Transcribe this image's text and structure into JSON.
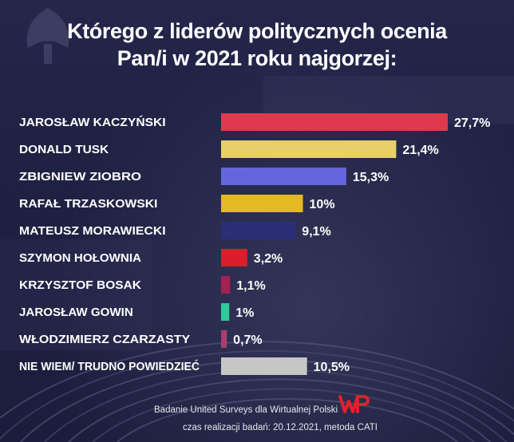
{
  "title": {
    "line1": "Którego z liderów politycznych ocenia",
    "line2": "Pan/i w 2021 roku najgorzej:"
  },
  "chart_data": {
    "type": "bar",
    "orientation": "horizontal",
    "categories": [
      "JAROSŁAW KACZYŃSKI",
      "DONALD TUSK",
      "ZBIGNIEW ZIOBRO",
      "RAFAŁ TRZASKOWSKI",
      "MATEUSZ MORAWIECKI",
      "SZYMON HOŁOWNIA",
      "KRZYSZTOF BOSAK",
      "JAROSŁAW GOWIN",
      "WŁODZIMIERZ CZARZASTY",
      "NIE WIEM/ TRUDNO POWIEDZIEĆ"
    ],
    "values": [
      27.7,
      21.4,
      15.3,
      10,
      9.1,
      3.2,
      1.1,
      1,
      0.7,
      10.5
    ],
    "value_labels": [
      "27,7%",
      "21,4%",
      "15,3%",
      "10%",
      "9,1%",
      "3,2%",
      "1,1%",
      "1%",
      "0,7%",
      "10,5%"
    ],
    "colors": [
      "#dd3a4d",
      "#e8cf6a",
      "#6366dc",
      "#e5b923",
      "#2c2e78",
      "#d81f2b",
      "#a22252",
      "#33c99a",
      "#a6406e",
      "#c6c6c6"
    ],
    "xlim": [
      0,
      27.7
    ],
    "grid": false,
    "legend": "none"
  },
  "footer": {
    "source": "Badanie United Surveys dla Wirtualnej Polski",
    "method": "czas realizacji badań: 20.12.2021, metoda CATI"
  },
  "logo": {
    "name": "wp-logo",
    "color": "#e2202a"
  }
}
